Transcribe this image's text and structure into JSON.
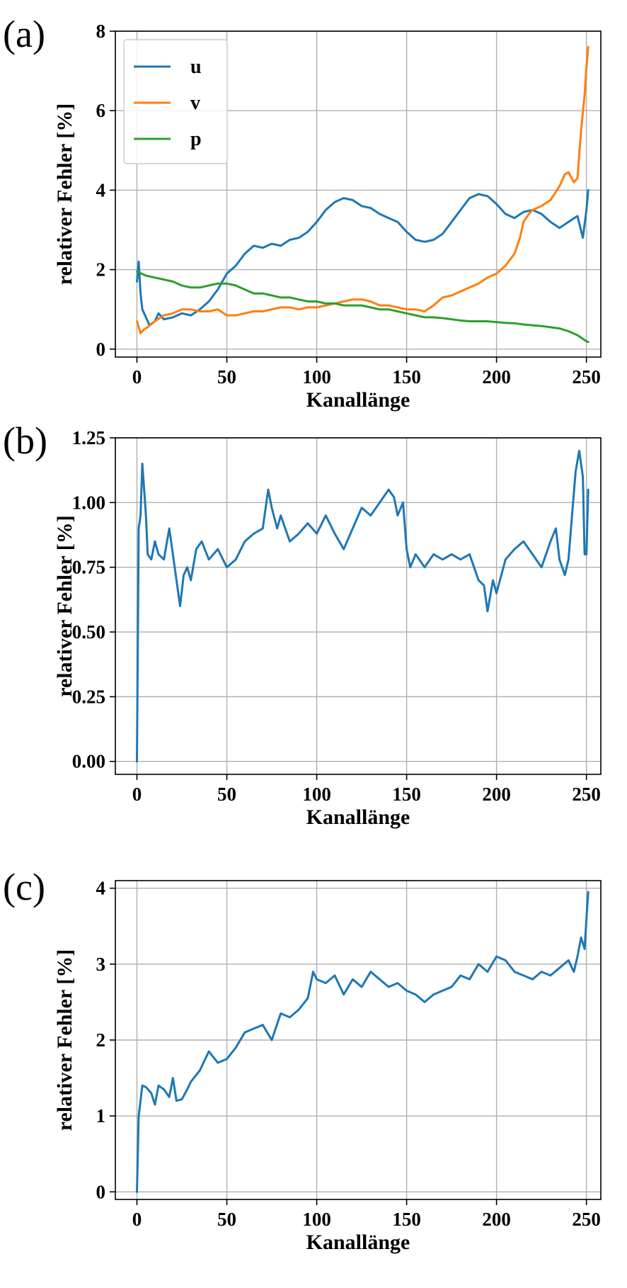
{
  "chart_data": [
    {
      "type": "line",
      "panel_label": "(a)",
      "xlabel": "Kanallänge",
      "ylabel": "relativer Fehler [%]",
      "xlim": [
        -12,
        258
      ],
      "ylim": [
        -0.2,
        8
      ],
      "xticks": [
        "0",
        "50",
        "100",
        "150",
        "200",
        "250"
      ],
      "yticks": [
        "0",
        "2",
        "4",
        "6",
        "8"
      ],
      "grid": true,
      "legend": "top-left",
      "series": [
        {
          "name": "u",
          "color": "#1f77b4",
          "x": [
            0,
            1,
            2,
            3,
            4,
            5,
            7,
            10,
            12,
            15,
            20,
            25,
            30,
            35,
            40,
            45,
            50,
            55,
            60,
            65,
            70,
            75,
            80,
            85,
            90,
            95,
            100,
            105,
            110,
            115,
            120,
            125,
            130,
            135,
            140,
            145,
            150,
            155,
            160,
            165,
            170,
            175,
            180,
            185,
            190,
            195,
            200,
            205,
            210,
            215,
            220,
            225,
            230,
            235,
            240,
            245,
            248,
            250,
            251
          ],
          "y": [
            1.7,
            2.2,
            1.4,
            1.0,
            0.9,
            0.8,
            0.6,
            0.7,
            0.9,
            0.75,
            0.8,
            0.9,
            0.85,
            1.0,
            1.2,
            1.5,
            1.9,
            2.1,
            2.4,
            2.6,
            2.55,
            2.65,
            2.6,
            2.75,
            2.8,
            2.95,
            3.2,
            3.5,
            3.7,
            3.8,
            3.75,
            3.6,
            3.55,
            3.4,
            3.3,
            3.2,
            2.95,
            2.75,
            2.7,
            2.75,
            2.9,
            3.2,
            3.5,
            3.8,
            3.9,
            3.85,
            3.65,
            3.4,
            3.3,
            3.45,
            3.5,
            3.4,
            3.2,
            3.05,
            3.2,
            3.35,
            2.8,
            3.5,
            4.0
          ]
        },
        {
          "name": "v",
          "color": "#ff7f0e",
          "x": [
            0,
            2,
            4,
            6,
            10,
            15,
            20,
            25,
            30,
            35,
            40,
            45,
            50,
            55,
            60,
            65,
            70,
            75,
            80,
            85,
            90,
            95,
            100,
            105,
            110,
            115,
            120,
            125,
            130,
            135,
            140,
            145,
            150,
            155,
            160,
            165,
            170,
            175,
            180,
            185,
            190,
            195,
            200,
            205,
            210,
            213,
            215,
            218,
            220,
            225,
            230,
            235,
            238,
            240,
            243,
            245,
            247,
            249,
            250,
            251
          ],
          "y": [
            0.7,
            0.4,
            0.5,
            0.55,
            0.7,
            0.85,
            0.9,
            1.0,
            1.0,
            0.95,
            0.95,
            1.0,
            0.85,
            0.85,
            0.9,
            0.95,
            0.95,
            1.0,
            1.05,
            1.05,
            1.0,
            1.05,
            1.05,
            1.1,
            1.15,
            1.2,
            1.25,
            1.25,
            1.2,
            1.1,
            1.1,
            1.05,
            1.0,
            1.0,
            0.95,
            1.1,
            1.3,
            1.35,
            1.45,
            1.55,
            1.65,
            1.8,
            1.9,
            2.1,
            2.4,
            2.8,
            3.2,
            3.4,
            3.5,
            3.6,
            3.75,
            4.1,
            4.4,
            4.45,
            4.2,
            4.3,
            5.5,
            6.4,
            7.1,
            7.6
          ]
        },
        {
          "name": "p",
          "color": "#2ca02c",
          "x": [
            0,
            5,
            10,
            15,
            20,
            25,
            30,
            35,
            40,
            45,
            50,
            55,
            60,
            65,
            70,
            75,
            80,
            85,
            90,
            95,
            100,
            105,
            110,
            115,
            120,
            125,
            130,
            135,
            140,
            145,
            150,
            155,
            160,
            165,
            170,
            175,
            180,
            185,
            190,
            195,
            200,
            205,
            210,
            215,
            220,
            225,
            230,
            235,
            240,
            245,
            250,
            251
          ],
          "y": [
            1.95,
            1.85,
            1.8,
            1.75,
            1.7,
            1.6,
            1.55,
            1.55,
            1.6,
            1.65,
            1.65,
            1.6,
            1.5,
            1.4,
            1.4,
            1.35,
            1.3,
            1.3,
            1.25,
            1.2,
            1.2,
            1.15,
            1.15,
            1.1,
            1.1,
            1.1,
            1.05,
            1.0,
            1.0,
            0.95,
            0.9,
            0.85,
            0.8,
            0.8,
            0.78,
            0.75,
            0.72,
            0.7,
            0.7,
            0.7,
            0.68,
            0.66,
            0.65,
            0.62,
            0.6,
            0.58,
            0.55,
            0.52,
            0.45,
            0.35,
            0.2,
            0.18
          ]
        }
      ]
    },
    {
      "type": "line",
      "panel_label": "(b)",
      "xlabel": "Kanallänge",
      "ylabel": "relativer Fehler [%]",
      "xlim": [
        -12,
        258
      ],
      "ylim": [
        -0.05,
        1.25
      ],
      "xticks": [
        "0",
        "50",
        "100",
        "150",
        "200",
        "250"
      ],
      "yticks": [
        "0.00",
        "0.25",
        "0.50",
        "0.75",
        "1.00",
        "1.25"
      ],
      "grid": true,
      "series": [
        {
          "color": "#1f77b4",
          "x": [
            0,
            1,
            2,
            3,
            4,
            5,
            6,
            8,
            10,
            12,
            15,
            18,
            20,
            22,
            24,
            26,
            28,
            30,
            33,
            36,
            40,
            45,
            50,
            55,
            60,
            65,
            70,
            73,
            75,
            78,
            80,
            85,
            90,
            95,
            100,
            105,
            110,
            115,
            120,
            125,
            130,
            135,
            140,
            143,
            145,
            148,
            150,
            152,
            155,
            160,
            165,
            170,
            175,
            180,
            185,
            190,
            193,
            195,
            198,
            200,
            205,
            210,
            215,
            220,
            225,
            230,
            233,
            235,
            238,
            240,
            242,
            244,
            246,
            248,
            249,
            250,
            251
          ],
          "y": [
            0.0,
            0.9,
            0.95,
            1.15,
            1.05,
            0.95,
            0.8,
            0.78,
            0.85,
            0.8,
            0.78,
            0.9,
            0.8,
            0.7,
            0.6,
            0.72,
            0.75,
            0.7,
            0.82,
            0.85,
            0.78,
            0.82,
            0.75,
            0.78,
            0.85,
            0.88,
            0.9,
            1.05,
            0.98,
            0.9,
            0.95,
            0.85,
            0.88,
            0.92,
            0.88,
            0.95,
            0.88,
            0.82,
            0.9,
            0.98,
            0.95,
            1.0,
            1.05,
            1.02,
            0.95,
            1.0,
            0.82,
            0.75,
            0.8,
            0.75,
            0.8,
            0.78,
            0.8,
            0.78,
            0.8,
            0.7,
            0.68,
            0.58,
            0.7,
            0.65,
            0.78,
            0.82,
            0.85,
            0.8,
            0.75,
            0.85,
            0.9,
            0.78,
            0.72,
            0.78,
            0.95,
            1.12,
            1.2,
            1.1,
            0.8,
            0.8,
            1.05
          ]
        }
      ]
    },
    {
      "type": "line",
      "panel_label": "(c)",
      "xlabel": "Kanallänge",
      "ylabel": "relativer Fehler [%]",
      "xlim": [
        -12,
        258
      ],
      "ylim": [
        -0.1,
        4.1
      ],
      "xticks": [
        "0",
        "50",
        "100",
        "150",
        "200",
        "250"
      ],
      "yticks": [
        "0",
        "1",
        "2",
        "3",
        "4"
      ],
      "grid": true,
      "series": [
        {
          "color": "#1f77b4",
          "x": [
            0,
            1,
            2,
            3,
            5,
            8,
            10,
            12,
            15,
            18,
            20,
            22,
            25,
            28,
            30,
            35,
            40,
            45,
            50,
            55,
            60,
            65,
            70,
            75,
            80,
            85,
            90,
            95,
            98,
            100,
            105,
            110,
            115,
            120,
            125,
            130,
            135,
            140,
            145,
            150,
            155,
            160,
            165,
            170,
            175,
            180,
            185,
            190,
            195,
            200,
            205,
            210,
            215,
            220,
            225,
            230,
            235,
            240,
            243,
            245,
            247,
            249,
            250,
            251
          ],
          "y": [
            0.0,
            1.0,
            1.2,
            1.4,
            1.38,
            1.3,
            1.15,
            1.4,
            1.35,
            1.25,
            1.5,
            1.2,
            1.22,
            1.35,
            1.45,
            1.6,
            1.85,
            1.7,
            1.75,
            1.9,
            2.1,
            2.15,
            2.2,
            2.0,
            2.35,
            2.3,
            2.4,
            2.55,
            2.9,
            2.8,
            2.75,
            2.85,
            2.6,
            2.8,
            2.7,
            2.9,
            2.8,
            2.7,
            2.75,
            2.65,
            2.6,
            2.5,
            2.6,
            2.65,
            2.7,
            2.85,
            2.8,
            3.0,
            2.9,
            3.1,
            3.05,
            2.9,
            2.85,
            2.8,
            2.9,
            2.85,
            2.95,
            3.05,
            2.9,
            3.1,
            3.35,
            3.2,
            3.6,
            3.95
          ]
        }
      ]
    }
  ]
}
